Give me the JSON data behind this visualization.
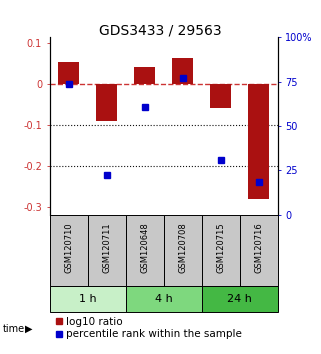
{
  "title": "GDS3433 / 29563",
  "samples": [
    "GSM120710",
    "GSM120711",
    "GSM120648",
    "GSM120708",
    "GSM120715",
    "GSM120716"
  ],
  "log10_ratio": [
    0.055,
    -0.09,
    0.042,
    0.065,
    -0.058,
    -0.28
  ],
  "blue_sq_y": [
    0.0,
    -0.222,
    -0.055,
    0.015,
    -0.185,
    -0.24
  ],
  "groups": [
    {
      "label": "1 h",
      "start": 0,
      "end": 2,
      "color": "#c8f0c8"
    },
    {
      "label": "4 h",
      "start": 2,
      "end": 4,
      "color": "#7ed87e"
    },
    {
      "label": "24 h",
      "start": 4,
      "end": 6,
      "color": "#44b844"
    }
  ],
  "ylim_left": [
    -0.32,
    0.115
  ],
  "ylim_right": [
    0,
    100
  ],
  "yticks_left": [
    0.1,
    0.0,
    -0.1,
    -0.2,
    -0.3
  ],
  "ytick_labels_left": [
    "0.1",
    "0",
    "-0.1",
    "-0.2",
    "-0.3"
  ],
  "yticks_right": [
    100,
    75,
    50,
    25,
    0
  ],
  "ytick_labels_right": [
    "100%",
    "75",
    "50",
    "25",
    "0"
  ],
  "bar_color": "#aa1111",
  "square_color": "#0000cc",
  "ref_line_color": "#cc3333",
  "dot_line_color": "#111111",
  "bg_color": "#ffffff",
  "sample_box_color": "#c8c8c8",
  "title_fontsize": 10,
  "tick_fontsize": 7,
  "label_fontsize": 8,
  "legend_fontsize": 7.5
}
